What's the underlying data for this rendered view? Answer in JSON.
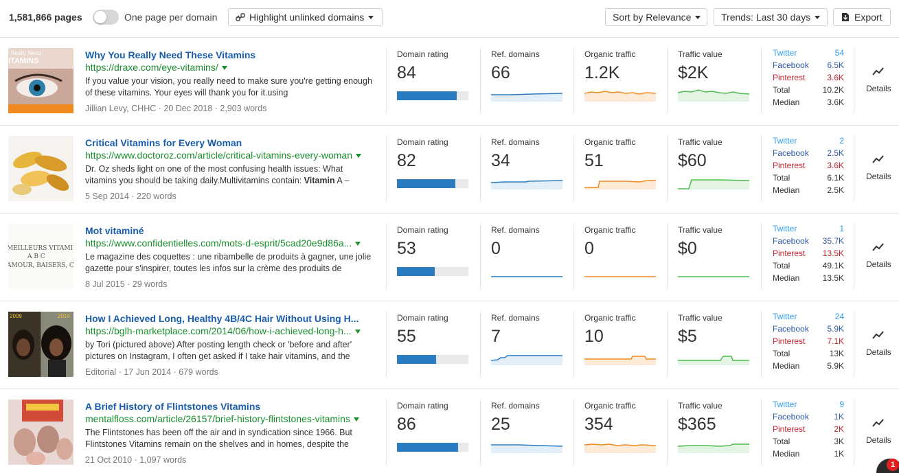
{
  "toolbar": {
    "pages_count": "1,581,866 pages",
    "toggle_label": "One page per domain",
    "highlight_label": "Highlight unlinked domains",
    "sort_label": "Sort by Relevance",
    "trends_label": "Trends: Last 30 days",
    "export_label": "Export"
  },
  "metric_labels": {
    "domain_rating": "Domain rating",
    "ref_domains": "Ref. domains",
    "organic_traffic": "Organic traffic",
    "traffic_value": "Traffic value"
  },
  "social_labels": {
    "twitter": "Twitter",
    "facebook": "Facebook",
    "pinterest": "Pinterest",
    "total": "Total",
    "median": "Median"
  },
  "details_label": "Details",
  "colors": {
    "title": "#1a5dab",
    "url": "#1a8f2e",
    "bar": "#2a7bbf",
    "ref_domains_line": "#2a7bbf",
    "organic_traffic_line": "#f28a1e",
    "traffic_value_line": "#4dbb4d"
  },
  "results": [
    {
      "title": "Why You Really Need These Vitamins",
      "url": "https://draxe.com/eye-vitamins/",
      "description": "If you value your vision, you really need to make sure you're getting enough of these vitamins. Your eyes will thank you for it.using",
      "meta": "Jillian Levy, CHHC · 20 Dec 2018 · 2,903 words",
      "thumb_text": "Really Need\nITAMINS",
      "domain_rating": "84",
      "domain_rating_value": 84,
      "ref_domains": "66",
      "organic_traffic": "1.2K",
      "traffic_value": "$2K",
      "twitter": "54",
      "facebook": "6.5K",
      "pinterest": "3.6K",
      "total": "10.2K",
      "median": "3.6K"
    },
    {
      "title": "Critical Vitamins for Every Woman",
      "url": "https://www.doctoroz.com/article/critical-vitamins-every-woman",
      "description_prefix": "Dr. Oz sheds light on one of the most confusing health issues: What vitamins you should be taking daily.Multivitamins contain: ",
      "description_bold": "Vitamin",
      "description_suffix": " A –",
      "meta": "5 Sep 2014 · 220 words",
      "domain_rating": "82",
      "domain_rating_value": 82,
      "ref_domains": "34",
      "organic_traffic": "51",
      "traffic_value": "$60",
      "twitter": "2",
      "facebook": "2.5K",
      "pinterest": "3.6K",
      "total": "6.1K",
      "median": "2.5K"
    },
    {
      "title": "Mot vitaminé",
      "url": "https://www.confidentielles.com/mots-d-esprit/5cad20e9d86a...",
      "description": "Le magazine des coquettes : une ribambelle de produits à gagner, une jolie gazette pour s'inspirer, toutes les infos sur la crème des produits de",
      "meta": "8 Jul 2015 · 29 words",
      "thumb_text_1": "MEILLEURS VITAMINES S",
      "thumb_text_2": "A  B  C",
      "thumb_text_3": "AMOUR, BAISERS, CALIN",
      "domain_rating": "53",
      "domain_rating_value": 53,
      "ref_domains": "0",
      "organic_traffic": "0",
      "traffic_value": "$0",
      "twitter": "1",
      "facebook": "35.7K",
      "pinterest": "13.5K",
      "total": "49.1K",
      "median": "13.5K"
    },
    {
      "title": "How I Achieved Long, Healthy 4B/4C Hair Without Using H...",
      "url": "https://bglh-marketplace.com/2014/06/how-i-achieved-long-h...",
      "description": "by Tori (pictured above) After posting length check or 'before and after' pictures on Instagram, I often get asked if I take hair vitamins, and the",
      "meta": "Editorial · 17 Jun 2014 · 679 words",
      "thumb_text_1": "2009",
      "thumb_text_2": "2014",
      "domain_rating": "55",
      "domain_rating_value": 55,
      "ref_domains": "7",
      "organic_traffic": "10",
      "traffic_value": "$5",
      "twitter": "24",
      "facebook": "5.9K",
      "pinterest": "7.1K",
      "total": "13K",
      "median": "5.9K"
    },
    {
      "title": "A Brief History of Flintstones Vitamins",
      "url": "mentalfloss.com/article/26157/brief-history-flintstones-vitamins",
      "description": "The Flintstones has been off the air and in syndication since 1966. But Flintstones Vitamins remain on the shelves and in homes, despite the",
      "meta": "21 Oct 2010 · 1,097 words",
      "domain_rating": "86",
      "domain_rating_value": 86,
      "ref_domains": "25",
      "organic_traffic": "354",
      "traffic_value": "$365",
      "twitter": "9",
      "facebook": "1K",
      "pinterest": "2K",
      "total": "3K",
      "median": "1K"
    }
  ],
  "notification_count": "1"
}
